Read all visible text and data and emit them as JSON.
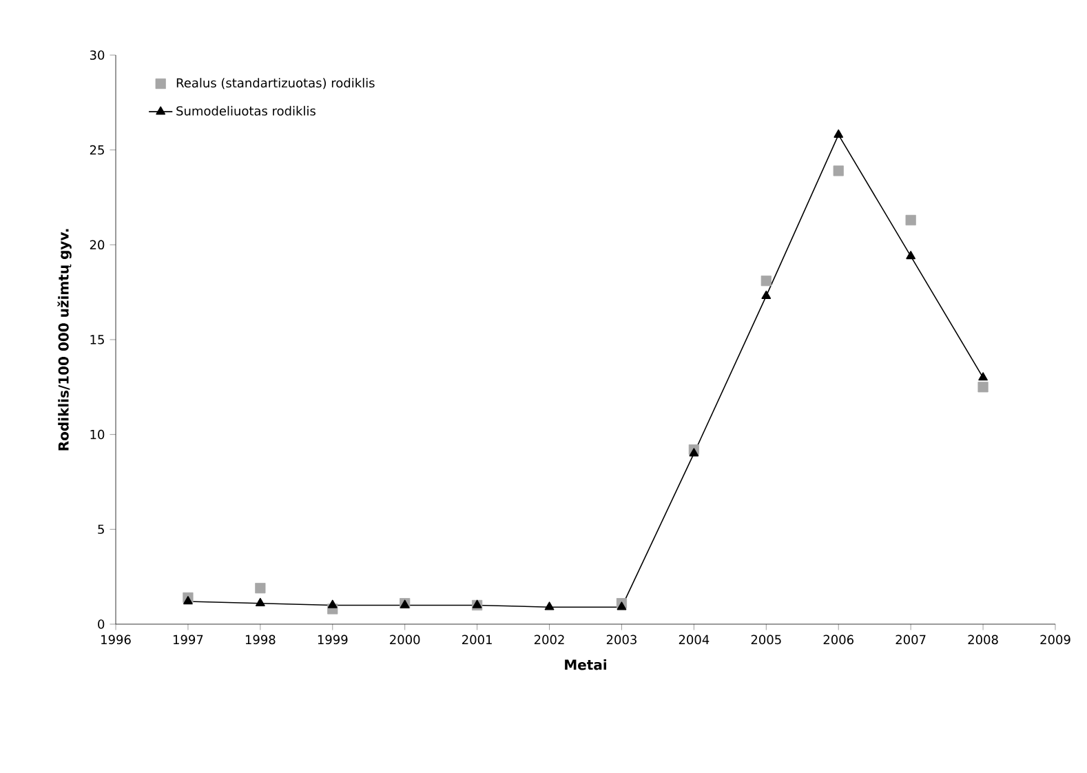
{
  "chart_data": {
    "type": "line",
    "xlabel": "Metai",
    "ylabel": "Rodiklis/100 000 užimtų gyv.",
    "x": [
      1997,
      1998,
      1999,
      2000,
      2001,
      2002,
      2003,
      2004,
      2005,
      2006,
      2007,
      2008
    ],
    "series": [
      {
        "name": "Realus (standartizuotas) rodiklis",
        "type": "scatter",
        "marker": "square",
        "color": "#a6a6a6",
        "values": [
          1.4,
          1.9,
          0.8,
          1.1,
          1.0,
          null,
          1.1,
          9.2,
          18.1,
          23.9,
          21.3,
          12.5
        ]
      },
      {
        "name": "Sumodeliuotas rodiklis",
        "type": "line",
        "marker": "triangle",
        "color": "#000000",
        "values": [
          1.2,
          1.1,
          1.0,
          1.0,
          1.0,
          0.9,
          0.9,
          9.0,
          17.3,
          25.8,
          19.4,
          13.0
        ]
      }
    ],
    "xlim": [
      1996,
      2009
    ],
    "xticks": [
      1996,
      1997,
      1998,
      1999,
      2000,
      2001,
      2002,
      2003,
      2004,
      2005,
      2006,
      2007,
      2008,
      2009
    ],
    "ylim": [
      0,
      30
    ],
    "yticks": [
      0,
      5,
      10,
      15,
      20,
      25,
      30
    ],
    "grid": false,
    "legend": "top left"
  }
}
